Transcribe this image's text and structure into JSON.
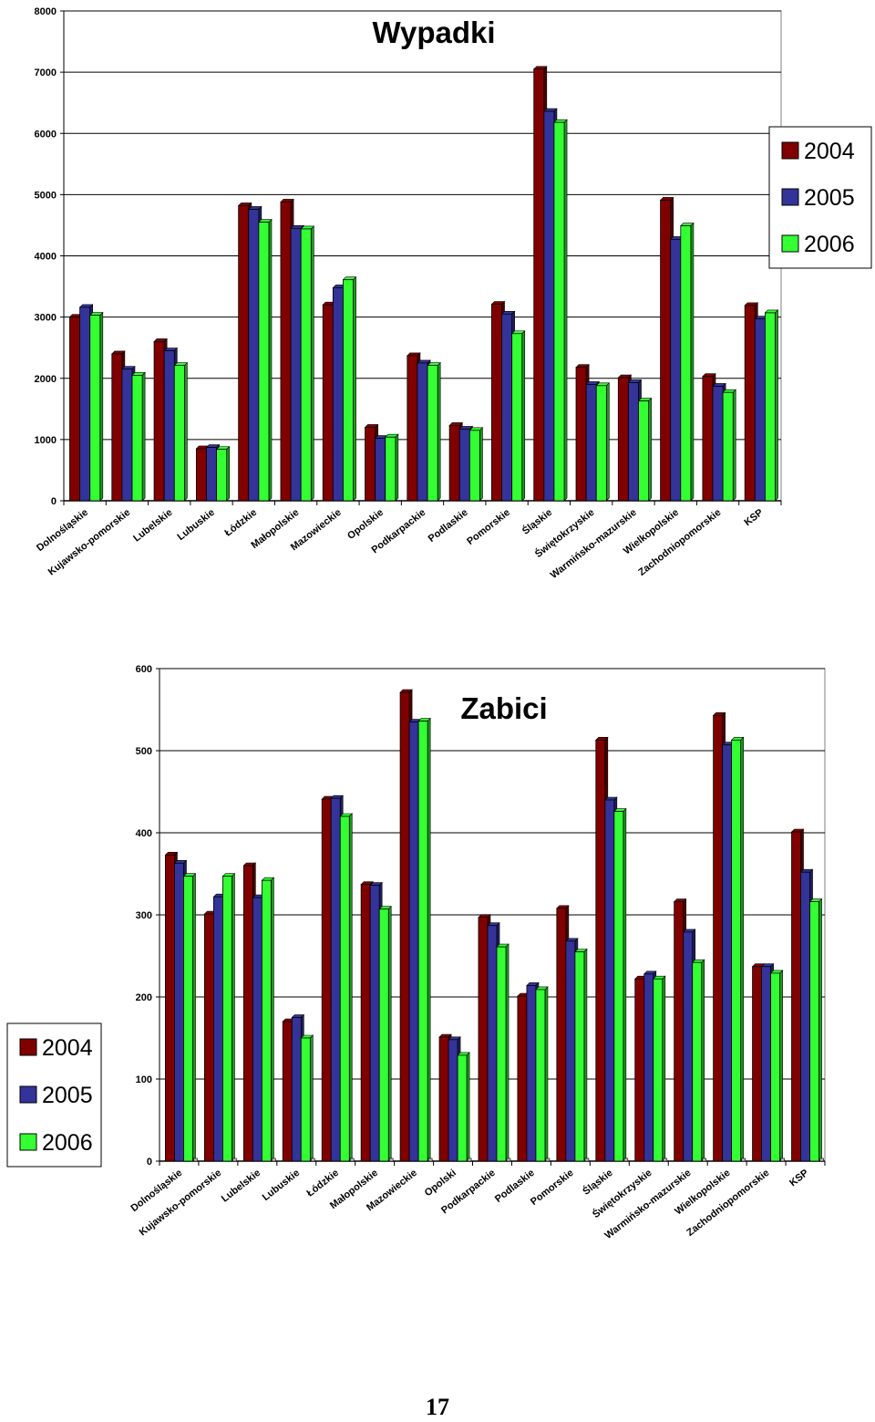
{
  "colors": {
    "2004": "#800000",
    "2005": "#333399",
    "2006": "#33ff33",
    "grid": "#000000"
  },
  "chart_data": [
    {
      "type": "bar",
      "title": "Wypadki",
      "ylim": [
        0,
        8000
      ],
      "yticks": [
        0,
        1000,
        2000,
        3000,
        4000,
        5000,
        6000,
        7000,
        8000
      ],
      "grid": true,
      "legend_position": "right",
      "categories": [
        "Dolnośląskie",
        "Kujawsko-pomorskie",
        "Lubelskie",
        "Lubuskie",
        "Łódzkie",
        "Małopolskie",
        "Mazowieckie",
        "Opolskie",
        "Podkarpackie",
        "Podlaskie",
        "Pomorskie",
        "Śląskie",
        "Świętokrzyskie",
        "Warmińsko-mazurskie",
        "Wielkopolskie",
        "Zachodniopomorskie",
        "KSP"
      ],
      "series": [
        {
          "name": "2004",
          "values": [
            3000,
            2400,
            2600,
            850,
            4820,
            4880,
            3200,
            1200,
            2370,
            1230,
            3210,
            7050,
            2180,
            2010,
            4910,
            2030,
            3190
          ]
        },
        {
          "name": "2005",
          "values": [
            3160,
            2150,
            2450,
            870,
            4760,
            4450,
            3480,
            1020,
            2250,
            1170,
            3050,
            6360,
            1900,
            1930,
            4270,
            1870,
            2970
          ]
        },
        {
          "name": "2006",
          "values": [
            3030,
            2050,
            2210,
            840,
            4550,
            4440,
            3610,
            1040,
            2210,
            1150,
            2730,
            6180,
            1880,
            1630,
            4490,
            1770,
            3070
          ]
        }
      ]
    },
    {
      "type": "bar",
      "title": "Zabici",
      "ylim": [
        0,
        600
      ],
      "yticks": [
        0,
        100,
        200,
        300,
        400,
        500,
        600
      ],
      "grid": true,
      "legend_position": "left",
      "categories": [
        "Dolnośląskie",
        "Kujawsko-pomorskie",
        "Lubelskie",
        "Lubuskie",
        "Łódzkie",
        "Małopolskie",
        "Mazowieckie",
        "Opolski",
        "Podkarpackie",
        "Podlaskie",
        "Pomorskie",
        "Śląskie",
        "Świętokrzyskie",
        "Warmińsko-mazurskie",
        "Wielkopolskie",
        "Zachodniopomorskie",
        "KSP"
      ],
      "series": [
        {
          "name": "2004",
          "values": [
            373,
            301,
            360,
            170,
            441,
            337,
            571,
            151,
            297,
            201,
            308,
            513,
            222,
            316,
            543,
            237,
            401
          ]
        },
        {
          "name": "2005",
          "values": [
            363,
            322,
            321,
            175,
            442,
            336,
            535,
            148,
            287,
            214,
            268,
            440,
            228,
            279,
            507,
            237,
            352
          ]
        },
        {
          "name": "2006",
          "values": [
            347,
            347,
            342,
            150,
            420,
            307,
            536,
            129,
            261,
            209,
            255,
            426,
            222,
            242,
            513,
            229,
            316
          ]
        }
      ]
    }
  ],
  "page_number": "17"
}
